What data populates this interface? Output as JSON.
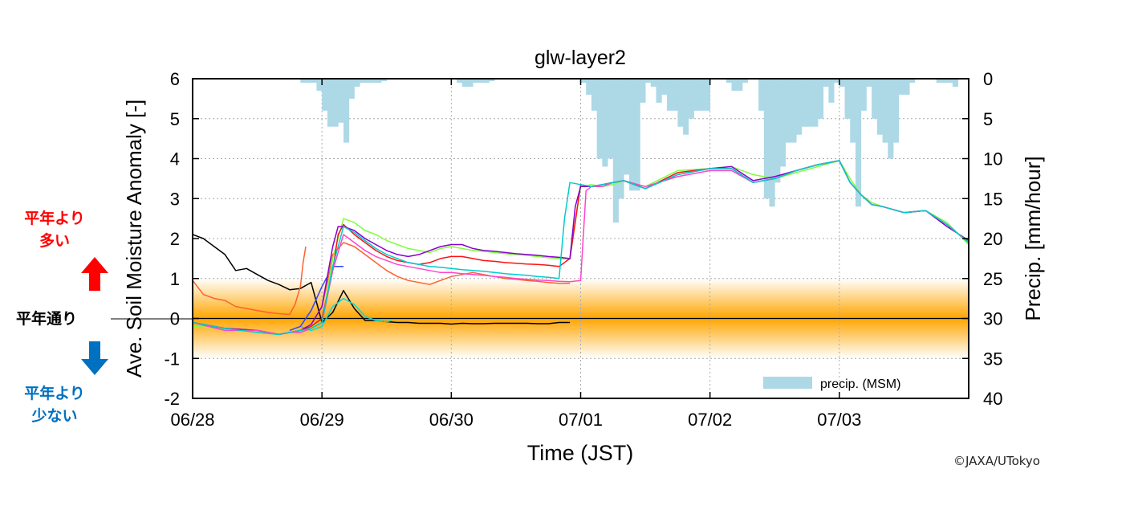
{
  "side_labels": {
    "above": "平年より\n多い",
    "normal": "平年通り",
    "below": "平年より\n少ない",
    "above_color": "#ff0000",
    "below_color": "#0070c0",
    "normal_color": "#000000",
    "up_arrow_color": "#ff0000",
    "down_arrow_color": "#0070c0"
  },
  "copyright": "©JAXA/UTokyo",
  "chart_data": {
    "type": "line",
    "title": "glw-layer2",
    "xlabel": "Time (JST)",
    "ylabel": "Ave. Soil Moisture Anomaly [-]",
    "y2label": "Precip. [mm/hour]",
    "xlim": [
      0,
      144
    ],
    "x_unit": "hours since 06/28 00:00 JST",
    "x_ticks": [
      0,
      24,
      48,
      72,
      96,
      120
    ],
    "x_tick_labels": [
      "06/28",
      "06/29",
      "06/30",
      "07/01",
      "07/02",
      "07/03"
    ],
    "ylim": [
      -2,
      6
    ],
    "y_ticks": [
      -2,
      -1,
      0,
      1,
      2,
      3,
      4,
      5,
      6
    ],
    "y2lim": [
      40,
      0
    ],
    "y2_ticks": [
      0,
      5,
      10,
      15,
      20,
      25,
      30,
      35,
      40
    ],
    "grid": true,
    "legend": {
      "label": "precip. (MSM)",
      "position": "bottom-right"
    },
    "band": {
      "from": -1,
      "to": 1,
      "color": "#ffa500",
      "description": "normal range shading"
    },
    "zero_line": 0,
    "colors": {
      "precip": "#add8e6",
      "axis": "#000000",
      "grid": "#aaaaaa"
    },
    "precip": {
      "name": "precip. (MSM)",
      "step_hours": 1,
      "start": 0,
      "values": [
        0,
        0,
        0,
        0,
        0,
        0,
        0,
        0,
        0,
        0,
        0,
        0,
        0,
        0,
        0,
        0,
        0,
        0,
        0,
        0,
        0.5,
        0.5,
        0.5,
        1.5,
        4,
        6,
        6,
        5.5,
        8,
        2.5,
        1,
        0.5,
        0.5,
        0.5,
        0.5,
        0.3,
        0,
        0,
        0,
        0,
        0,
        0,
        0,
        0,
        0,
        0,
        0,
        0,
        0,
        0.5,
        1,
        1,
        0.5,
        0.5,
        0.5,
        0.3,
        0,
        0,
        0,
        0,
        0,
        0,
        0,
        0,
        0,
        0,
        0,
        0,
        0,
        0,
        0,
        0,
        0.5,
        2,
        4,
        10,
        11,
        10,
        18,
        15,
        12,
        14,
        14,
        3,
        0.5,
        1,
        3,
        2,
        4,
        4,
        6,
        7,
        5,
        4,
        4,
        4,
        0,
        0,
        0,
        0.5,
        1.5,
        1.5,
        0.5,
        0,
        0,
        4,
        15,
        16,
        13,
        11,
        8,
        8,
        7,
        6,
        6,
        6,
        5,
        1,
        3,
        0.5,
        1,
        5,
        8,
        16,
        4,
        1,
        5,
        7,
        8,
        10,
        8,
        2,
        2,
        0.5,
        0,
        0,
        0,
        0,
        0.5,
        0.5,
        0.5,
        1
      ]
    },
    "series": [
      {
        "color": "#000000",
        "x": [
          0,
          2,
          4,
          6,
          8,
          10,
          12,
          14,
          16,
          18,
          20,
          22,
          24,
          26,
          28,
          30,
          32,
          34,
          36,
          38,
          40,
          42,
          44,
          46,
          48,
          50,
          52,
          54,
          56,
          58,
          60,
          62,
          64,
          66,
          68,
          70
        ],
        "y": [
          2.1,
          2,
          1.8,
          1.6,
          1.2,
          1.25,
          1.1,
          0.95,
          0.85,
          0.72,
          0.75,
          0.9,
          -0.1,
          0.15,
          0.7,
          0.25,
          -0.05,
          -0.05,
          -0.08,
          -0.1,
          -0.1,
          -0.12,
          -0.12,
          -0.12,
          -0.14,
          -0.12,
          -0.13,
          -0.13,
          -0.12,
          -0.12,
          -0.12,
          -0.12,
          -0.13,
          -0.13,
          -0.1,
          -0.1
        ]
      },
      {
        "color": "#ff6030",
        "x": [
          0,
          2,
          4,
          6,
          8,
          10,
          12,
          14,
          16,
          18,
          19,
          20,
          20.5,
          21
        ],
        "y": [
          0.95,
          0.6,
          0.5,
          0.45,
          0.3,
          0.25,
          0.2,
          0.15,
          0.12,
          0.1,
          0.35,
          0.8,
          1.4,
          1.8
        ]
      },
      {
        "color": "#00dddd",
        "x": [
          20,
          22,
          24,
          25,
          26,
          28,
          30,
          32,
          34,
          36,
          37
        ],
        "y": [
          -0.2,
          -0.3,
          -0.2,
          0.05,
          0.3,
          0.5,
          0.35,
          0.05,
          -0.05,
          -0.08,
          -0.05
        ]
      },
      {
        "color": "#3344ff",
        "x": [
          18,
          20,
          22,
          24,
          26,
          28
        ],
        "y": [
          -0.3,
          -0.2,
          0.2,
          0.8,
          1.3,
          1.3
        ]
      },
      {
        "color": "#ff6030",
        "x": [
          24,
          25,
          26,
          28,
          30,
          32,
          34,
          36,
          38,
          40,
          42,
          44,
          46,
          48,
          50,
          52,
          54,
          56,
          58,
          60,
          62,
          64,
          66,
          68,
          70
        ],
        "y": [
          0.3,
          0.9,
          1.6,
          1.9,
          1.8,
          1.6,
          1.4,
          1.2,
          1.05,
          0.95,
          0.9,
          0.85,
          0.95,
          1.05,
          1.1,
          1.15,
          1.1,
          1.05,
          1,
          0.98,
          0.95,
          0.93,
          0.9,
          0.88,
          0.88
        ]
      },
      {
        "color": "#7fff3f",
        "x": [
          0,
          6,
          12,
          16,
          18,
          20,
          22,
          24,
          26,
          28,
          30,
          32,
          34,
          36,
          38,
          40,
          42,
          44,
          46,
          48,
          50,
          52,
          54,
          56,
          58,
          60,
          62,
          64,
          66,
          68,
          70,
          72,
          74,
          76,
          78,
          80,
          84,
          90,
          96,
          100,
          104,
          108,
          112,
          116,
          120,
          122,
          124,
          126,
          128,
          132,
          136,
          140,
          144
        ],
        "y": [
          -0.2,
          -0.25,
          -0.35,
          -0.4,
          -0.35,
          -0.3,
          -0.2,
          -0.1,
          1.5,
          2.5,
          2.4,
          2.2,
          2.1,
          1.95,
          1.85,
          1.75,
          1.7,
          1.65,
          1.75,
          1.8,
          1.75,
          1.7,
          1.68,
          1.65,
          1.62,
          1.6,
          1.58,
          1.55,
          1.52,
          1.5,
          1.48,
          3.3,
          3.35,
          3.3,
          3.35,
          3.45,
          3.3,
          3.7,
          3.75,
          3.8,
          3.6,
          3.5,
          3.65,
          3.8,
          3.95,
          3.5,
          3.1,
          2.9,
          2.8,
          2.65,
          2.7,
          2.4,
          1.85
        ]
      },
      {
        "color": "#ff1111",
        "x": [
          0,
          6,
          12,
          16,
          18,
          20,
          22,
          24,
          26,
          27,
          28,
          30,
          32,
          34,
          36,
          38,
          40,
          42,
          44,
          46,
          48,
          50,
          52,
          54,
          56,
          58,
          60,
          62,
          64,
          66,
          68,
          70,
          72,
          74,
          76,
          78,
          80,
          84,
          90,
          96,
          100,
          104,
          108,
          112,
          116,
          120,
          122,
          124,
          126,
          128,
          132,
          136,
          140,
          144
        ],
        "y": [
          -0.1,
          -0.25,
          -0.3,
          -0.4,
          -0.35,
          -0.3,
          -0.2,
          0,
          1.2,
          2.1,
          2.35,
          2.1,
          1.9,
          1.7,
          1.55,
          1.45,
          1.4,
          1.35,
          1.4,
          1.5,
          1.55,
          1.55,
          1.5,
          1.45,
          1.43,
          1.4,
          1.38,
          1.36,
          1.35,
          1.33,
          1.3,
          1.5,
          3.35,
          3.3,
          3.35,
          3.4,
          3.45,
          3.25,
          3.65,
          3.75,
          3.75,
          3.4,
          3.5,
          3.7,
          3.85,
          3.95,
          3.4,
          3.1,
          2.85,
          2.8,
          2.65,
          2.7,
          2.35,
          1.9
        ]
      },
      {
        "color": "#8800cc",
        "x": [
          0,
          6,
          12,
          16,
          18,
          20,
          22,
          24,
          26,
          27,
          28,
          30,
          32,
          34,
          36,
          38,
          40,
          42,
          44,
          46,
          48,
          50,
          52,
          54,
          56,
          58,
          60,
          62,
          64,
          66,
          68,
          70,
          71,
          72,
          74,
          76,
          78,
          80,
          84,
          90,
          96,
          100,
          104,
          108,
          112,
          116,
          120,
          122,
          124,
          126,
          128,
          132,
          136,
          140,
          144
        ],
        "y": [
          -0.1,
          -0.25,
          -0.3,
          -0.4,
          -0.35,
          -0.3,
          -0.15,
          0.3,
          1.8,
          2.3,
          2.3,
          2.2,
          2,
          1.85,
          1.7,
          1.6,
          1.55,
          1.6,
          1.7,
          1.8,
          1.85,
          1.85,
          1.75,
          1.7,
          1.68,
          1.65,
          1.62,
          1.6,
          1.58,
          1.55,
          1.53,
          1.5,
          2.8,
          3.3,
          3.3,
          3.35,
          3.4,
          3.45,
          3.25,
          3.6,
          3.75,
          3.8,
          3.45,
          3.55,
          3.7,
          3.85,
          3.95,
          3.4,
          3.1,
          2.85,
          2.8,
          2.65,
          2.7,
          2.3,
          1.95
        ]
      },
      {
        "color": "#ff44cc",
        "x": [
          0,
          6,
          12,
          16,
          18,
          20,
          22,
          24,
          26,
          28,
          30,
          32,
          34,
          36,
          38,
          40,
          42,
          44,
          46,
          48,
          50,
          52,
          54,
          56,
          58,
          60,
          62,
          64,
          66,
          68,
          70,
          72,
          73,
          74,
          76,
          78,
          80,
          84,
          90,
          96,
          100,
          104,
          108,
          112,
          116,
          120,
          122,
          124,
          126,
          128,
          132,
          136,
          140,
          144
        ],
        "y": [
          -0.1,
          -0.3,
          -0.3,
          -0.4,
          -0.35,
          -0.35,
          -0.25,
          -0.1,
          1.2,
          2.1,
          1.9,
          1.7,
          1.55,
          1.45,
          1.35,
          1.3,
          1.25,
          1.2,
          1.15,
          1.15,
          1.12,
          1.1,
          1.08,
          1.05,
          1.03,
          1,
          0.98,
          0.96,
          0.95,
          0.93,
          0.92,
          0.95,
          3.2,
          3.3,
          3.3,
          3.4,
          3.45,
          3.3,
          3.55,
          3.7,
          3.7,
          3.4,
          3.5,
          3.7,
          3.85,
          3.95,
          3.4,
          3.1,
          2.85,
          2.8,
          2.65,
          2.7,
          2.35,
          1.9
        ]
      },
      {
        "color": "#00cccc",
        "x": [
          0,
          6,
          12,
          16,
          18,
          20,
          22,
          24,
          26,
          28,
          30,
          32,
          34,
          36,
          38,
          40,
          42,
          44,
          46,
          48,
          50,
          52,
          54,
          56,
          58,
          60,
          62,
          64,
          66,
          68,
          69,
          70,
          72,
          74,
          76,
          80,
          84,
          90,
          96,
          100,
          104,
          108,
          112,
          116,
          120,
          122,
          124,
          126,
          128,
          132,
          136,
          140,
          144
        ],
        "y": [
          -0.1,
          -0.25,
          -0.35,
          -0.4,
          -0.35,
          -0.3,
          -0.25,
          -0.1,
          1.3,
          2.3,
          2.15,
          1.95,
          1.75,
          1.6,
          1.5,
          1.4,
          1.35,
          1.3,
          1.28,
          1.25,
          1.22,
          1.2,
          1.18,
          1.15,
          1.12,
          1.1,
          1.08,
          1.05,
          1.03,
          1,
          2.5,
          3.4,
          3.35,
          3.3,
          3.35,
          3.45,
          3.25,
          3.6,
          3.75,
          3.75,
          3.4,
          3.5,
          3.7,
          3.85,
          3.95,
          3.4,
          3.1,
          2.85,
          2.8,
          2.65,
          2.7,
          2.35,
          1.9
        ]
      }
    ]
  }
}
